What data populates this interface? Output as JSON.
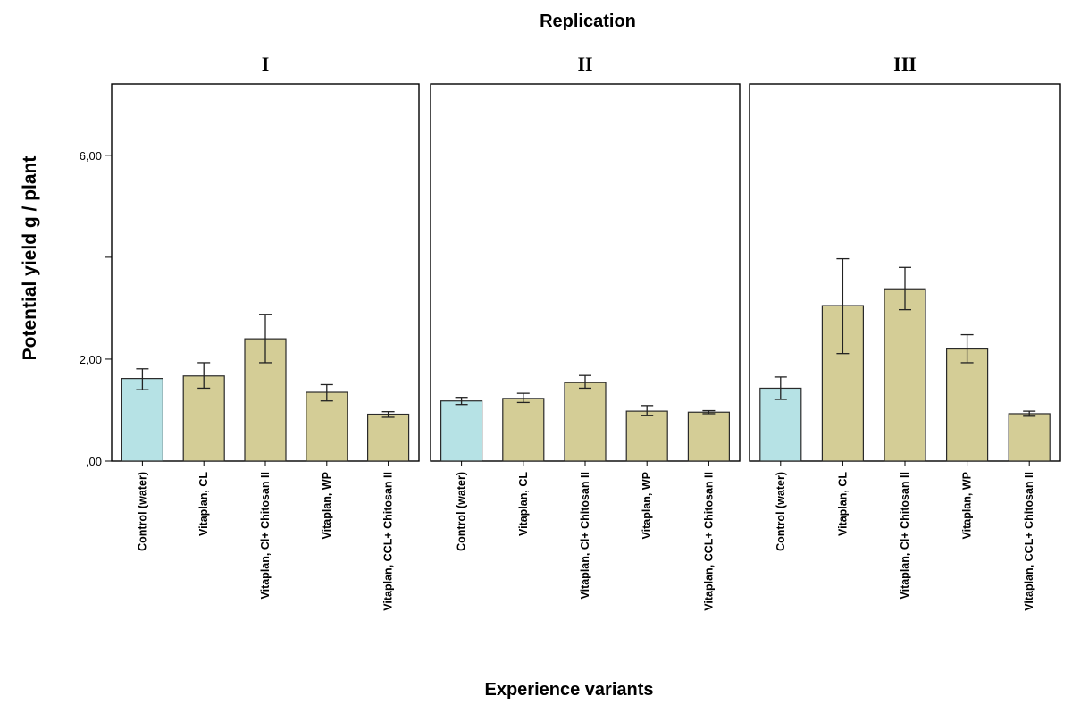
{
  "chart_data": {
    "type": "bar",
    "top_title": "Replication",
    "xlabel": "Experience variants",
    "ylabel": "Potential yield g / plant",
    "y_tick_labels": [
      ",00",
      "2,00",
      "",
      "6,00"
    ],
    "y_tick_values": [
      0,
      2,
      4,
      6
    ],
    "ylim": [
      0,
      7.4
    ],
    "categories": [
      "Control (water)",
      "Vitaplan, CL",
      "Vitaplan, Cl+ Chitosan II",
      "Vitaplan, WP",
      "Vitaplan, CCL+ Chitosan II"
    ],
    "panels": [
      {
        "title": "I",
        "values": [
          1.62,
          1.67,
          2.4,
          1.35,
          0.92
        ],
        "err_low": [
          1.4,
          1.43,
          1.93,
          1.18,
          0.86
        ],
        "err_high": [
          1.81,
          1.93,
          2.88,
          1.5,
          0.97
        ]
      },
      {
        "title": "II",
        "values": [
          1.18,
          1.23,
          1.54,
          0.98,
          0.96
        ],
        "err_low": [
          1.11,
          1.15,
          1.43,
          0.89,
          0.93
        ],
        "err_high": [
          1.25,
          1.33,
          1.68,
          1.09,
          0.99
        ]
      },
      {
        "title": "III",
        "values": [
          1.43,
          3.05,
          3.38,
          2.2,
          0.93
        ],
        "err_low": [
          1.21,
          2.11,
          2.97,
          1.93,
          0.88
        ],
        "err_high": [
          1.65,
          3.97,
          3.8,
          2.48,
          0.98
        ]
      }
    ],
    "colors": {
      "control": "#b6e2e5",
      "treatment": "#d4cd96",
      "outline": "#2a2a2a"
    },
    "grid": false,
    "legend": "none"
  }
}
